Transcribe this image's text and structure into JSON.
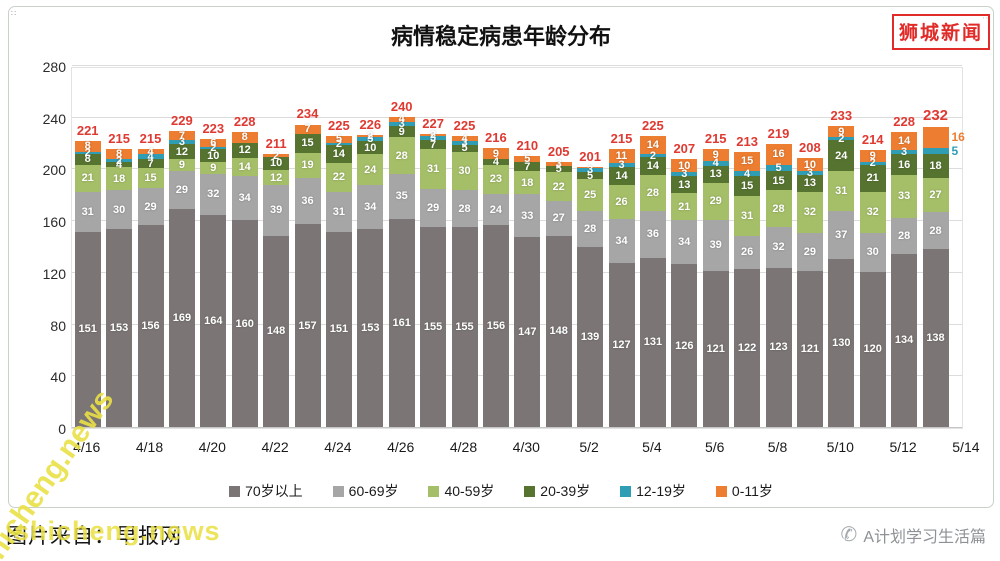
{
  "header": {
    "logo_text": "狮城新闻"
  },
  "footer": {
    "left_text": "图片来自：早报网",
    "watermark": "shicheng.news",
    "right_text": "A计划学习生活篇"
  },
  "chart_data": {
    "type": "bar",
    "stacked": true,
    "title": "病情稳定病患年龄分布",
    "x_tick_labels": [
      "4/16",
      "4/18",
      "4/20",
      "4/22",
      "4/24",
      "4/26",
      "4/28",
      "4/30",
      "5/2",
      "5/4",
      "5/6",
      "5/8",
      "5/10",
      "5/12",
      "5/14"
    ],
    "ylim": [
      0,
      280
    ],
    "y_ticks": [
      0,
      40,
      80,
      120,
      160,
      200,
      240,
      280
    ],
    "grid": "horizontal",
    "legend_position": "bottom",
    "totals_color": "#df3a32",
    "totals": [
      221,
      215,
      215,
      229,
      223,
      228,
      211,
      234,
      225,
      226,
      240,
      227,
      225,
      216,
      210,
      205,
      201,
      215,
      225,
      207,
      215,
      213,
      219,
      208,
      233,
      214,
      228,
      232
    ],
    "series": [
      {
        "name": "70岁以上",
        "color": "#7b7575",
        "values": [
          151,
          153,
          156,
          169,
          164,
          160,
          148,
          157,
          151,
          153,
          161,
          155,
          155,
          156,
          147,
          148,
          139,
          127,
          131,
          126,
          121,
          122,
          123,
          121,
          130,
          120,
          134,
          138
        ]
      },
      {
        "name": "60-69岁",
        "color": "#a6a6a6",
        "values": [
          31,
          30,
          29,
          29,
          32,
          34,
          39,
          36,
          31,
          34,
          35,
          29,
          28,
          24,
          33,
          27,
          28,
          34,
          36,
          34,
          39,
          26,
          32,
          29,
          37,
          30,
          28,
          28
        ]
      },
      {
        "name": "40-59岁",
        "color": "#a5bf68",
        "values": [
          21,
          18,
          15,
          9,
          9,
          14,
          12,
          19,
          22,
          24,
          28,
          31,
          30,
          23,
          18,
          22,
          25,
          26,
          28,
          21,
          29,
          31,
          28,
          32,
          31,
          32,
          33,
          27
        ]
      },
      {
        "name": "20-39岁",
        "color": "#567430",
        "values": [
          8,
          4,
          7,
          12,
          10,
          12,
          10,
          15,
          14,
          10,
          9,
          7,
          5,
          4,
          7,
          5,
          5,
          14,
          14,
          13,
          13,
          15,
          15,
          13,
          24,
          21,
          16,
          18
        ]
      },
      {
        "name": "12-19岁",
        "color": "#2f9db4",
        "values": [
          2,
          2,
          4,
          3,
          2,
          0,
          0,
          0,
          2,
          3,
          3,
          3,
          3,
          0,
          0,
          0,
          3,
          3,
          2,
          3,
          4,
          4,
          5,
          3,
          2,
          2,
          3,
          5
        ]
      },
      {
        "name": "0-11岁",
        "color": "#ed7d31",
        "values": [
          8,
          8,
          4,
          7,
          6,
          8,
          2,
          7,
          5,
          2,
          4,
          2,
          4,
          9,
          5,
          3,
          1,
          11,
          14,
          10,
          9,
          15,
          16,
          10,
          9,
          9,
          14,
          16
        ]
      }
    ]
  }
}
